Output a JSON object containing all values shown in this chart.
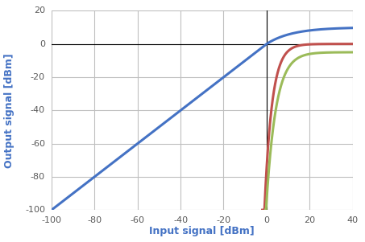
{
  "title": "",
  "xlabel": "Input signal [dBm]",
  "ylabel": "Output signal [dBm]",
  "xlim": [
    -100,
    40
  ],
  "ylim": [
    -100,
    20
  ],
  "xticks": [
    -100,
    -80,
    -60,
    -40,
    -20,
    0,
    20,
    40
  ],
  "yticks": [
    -100,
    -80,
    -60,
    -40,
    -20,
    0,
    20
  ],
  "blue_color": "#4472C4",
  "red_color": "#C0504D",
  "green_color": "#9BBB59",
  "background_color": "#FFFFFF",
  "grid_color": "#BFBFBF",
  "linewidth": 2.2,
  "xlabel_fontsize": 9,
  "ylabel_fontsize": 9,
  "tick_fontsize": 8
}
